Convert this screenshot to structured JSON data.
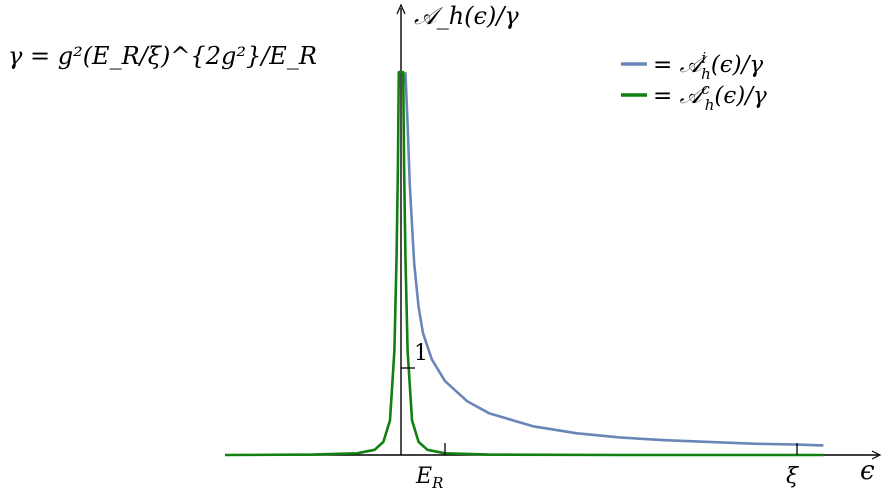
{
  "chart_data": {
    "type": "line",
    "title": "",
    "annotation": "γ = g²(E_R/ξ)^(2g²)/E_R",
    "xlabel": "ϵ",
    "ylabel": "𝒜_h(ϵ)/γ",
    "x_ticks": [
      {
        "value": 1,
        "label": "E_R"
      },
      {
        "value": 9,
        "label": "ξ"
      }
    ],
    "y_ticks": [
      {
        "value": 1,
        "label": "1"
      }
    ],
    "xlim": [
      -4,
      10
    ],
    "ylim": [
      0,
      4.4
    ],
    "grid": false,
    "legend_position": "top-right",
    "series": [
      {
        "name": "= 𝒜ʰⁱ(ϵ)/γ",
        "color": "#6a86b8",
        "x": [
          0.1,
          0.15,
          0.2,
          0.3,
          0.4,
          0.5,
          0.7,
          1.0,
          1.5,
          2.0,
          3.0,
          4.0,
          5.0,
          6.0,
          7.0,
          8.0,
          9.0,
          9.6
        ],
        "y": [
          4.4,
          3.8,
          3.1,
          2.2,
          1.7,
          1.4,
          1.1,
          0.85,
          0.62,
          0.48,
          0.33,
          0.25,
          0.2,
          0.17,
          0.15,
          0.13,
          0.12,
          0.11
        ]
      },
      {
        "name": "= 𝒜ʰᶜ(ϵ)/γ",
        "color": "#118011",
        "x": [
          -4.0,
          -2.0,
          -1.0,
          -0.6,
          -0.4,
          -0.25,
          -0.15,
          -0.1,
          -0.07,
          -0.05,
          0.05,
          0.07,
          0.1,
          0.15,
          0.25,
          0.4,
          0.6,
          1.0,
          2.0,
          5.0,
          9.6
        ],
        "y": [
          0.0,
          0.005,
          0.02,
          0.06,
          0.15,
          0.4,
          1.2,
          2.3,
          3.3,
          4.4,
          4.4,
          3.3,
          2.3,
          1.2,
          0.4,
          0.15,
          0.06,
          0.02,
          0.005,
          0.0,
          0.0
        ]
      }
    ],
    "legend": [
      {
        "label": "= 𝒜",
        "sub": "h",
        "sup": "i",
        "rest": "(ϵ)/γ"
      },
      {
        "label": "= 𝒜",
        "sub": "h",
        "sup": "c",
        "rest": "(ϵ)/γ"
      }
    ],
    "text": {
      "formula": "γ = g²(E_R/ξ)^{2g²}/E_R",
      "y_axis": "𝒜_h(ϵ)/γ",
      "x_axis": "ϵ",
      "tick_er_main": "E",
      "tick_er_sub": "R",
      "tick_xi": "ξ",
      "tick_one": "1"
    }
  }
}
